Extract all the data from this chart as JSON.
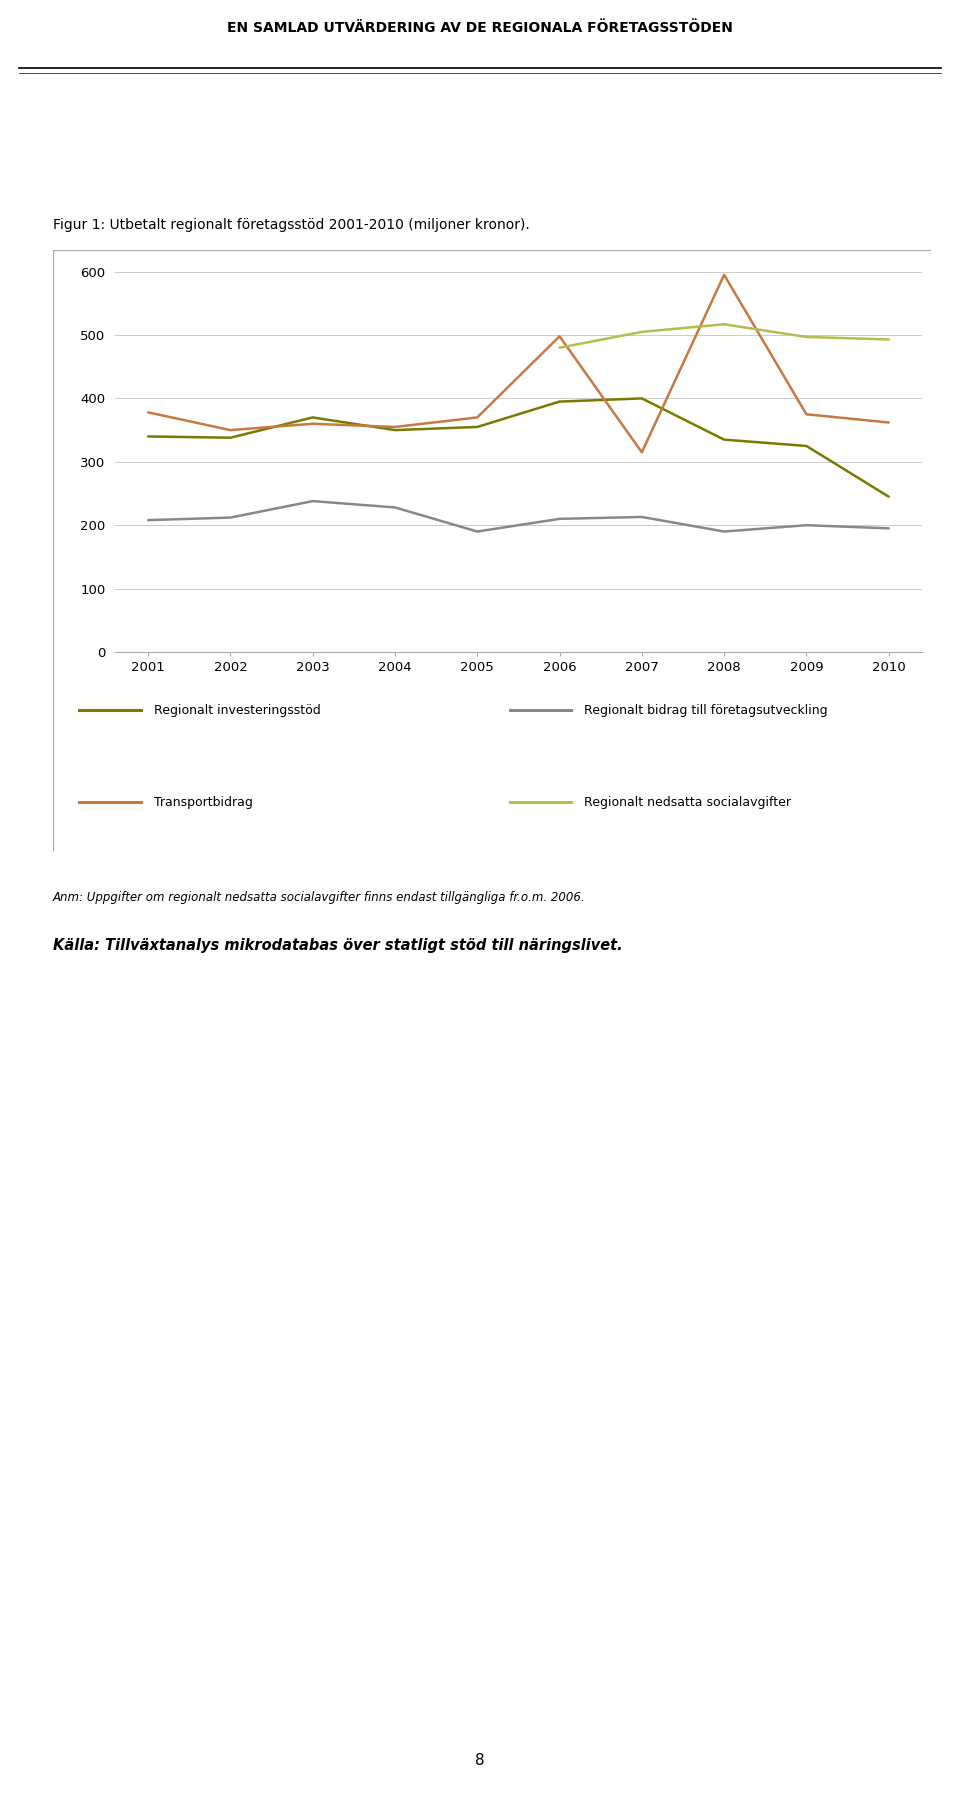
{
  "header": "EN SAMLAD UTVÄRDERING AV DE REGIONALA FÖRETAGSSTÖDEN",
  "figure_title": "Figur 1: Utbetalt regionalt företagsstöd 2001-2010 (miljoner kronor).",
  "years": [
    2001,
    2002,
    2003,
    2004,
    2005,
    2006,
    2007,
    2008,
    2009,
    2010
  ],
  "series": {
    "Regionalt investeringsstöd": {
      "values": [
        340,
        338,
        370,
        350,
        355,
        395,
        400,
        335,
        325,
        245
      ],
      "color": "#7a7a00",
      "linewidth": 1.8
    },
    "Regionalt bidrag till företagsutveckling": {
      "values": [
        208,
        212,
        238,
        228,
        190,
        210,
        213,
        190,
        200,
        195
      ],
      "color": "#888888",
      "linewidth": 1.8
    },
    "Transportbidrag": {
      "values": [
        378,
        350,
        360,
        355,
        370,
        498,
        315,
        595,
        375,
        362
      ],
      "color": "#c87941",
      "linewidth": 1.8
    },
    "Regionalt nedsatta socialavgifter": {
      "values": [
        null,
        null,
        null,
        null,
        null,
        480,
        505,
        517,
        497,
        493
      ],
      "color": "#b5bd4b",
      "linewidth": 1.8
    }
  },
  "ylim": [
    0,
    620
  ],
  "yticks": [
    0,
    100,
    200,
    300,
    400,
    500,
    600
  ],
  "xlim": [
    2000.6,
    2010.4
  ],
  "background_color": "#ffffff",
  "plot_bg_color": "#ffffff",
  "grid_color": "#cccccc",
  "anm_text": "Anm: Uppgifter om regionalt nedsatta socialavgifter finns endast tillgängliga fr.o.m. 2006.",
  "kalla_text": "Källa: Tillväxtanalys mikrodatabas över statligt stöd till näringslivet."
}
